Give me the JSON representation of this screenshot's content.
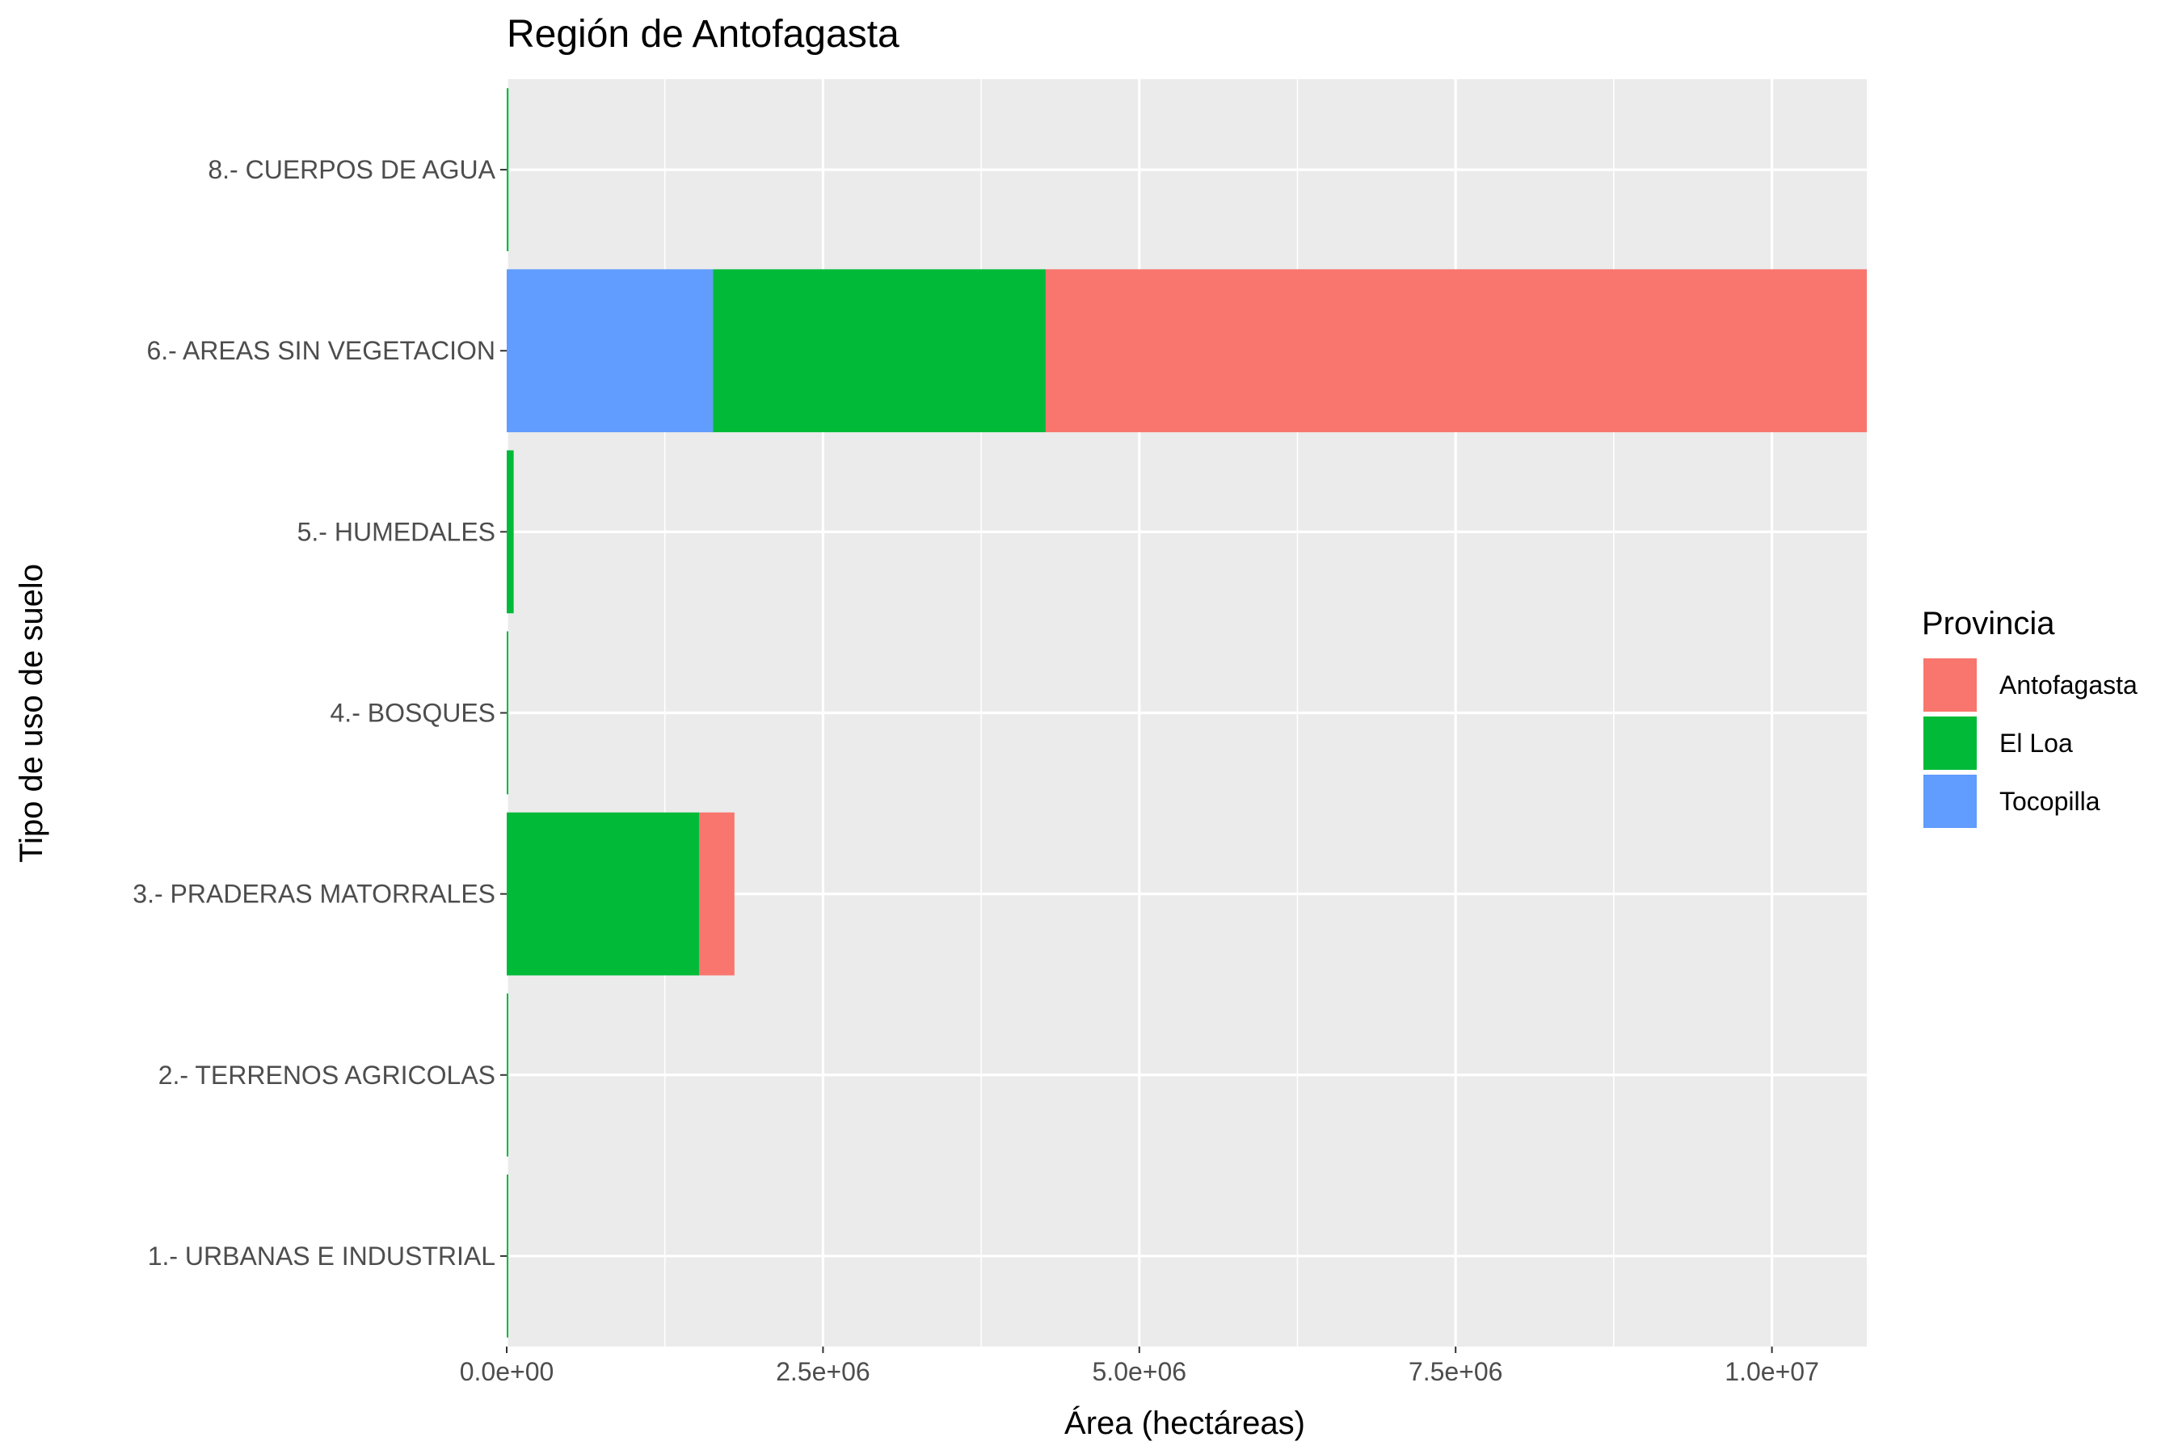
{
  "chart_data": {
    "type": "bar",
    "orientation": "horizontal",
    "stacked": true,
    "title": "Región de Antofagasta",
    "xlabel": "Área (hectáreas)",
    "ylabel": "Tipo de uso de suelo",
    "xlim": [
      0,
      10750000
    ],
    "x_ticks": [
      {
        "value": 0,
        "label": "0.0e+00"
      },
      {
        "value": 2500000,
        "label": "2.5e+06"
      },
      {
        "value": 5000000,
        "label": "5.0e+06"
      },
      {
        "value": 7500000,
        "label": "7.5e+06"
      },
      {
        "value": 10000000,
        "label": "1.0e+07"
      }
    ],
    "categories": [
      "1.- URBANAS E INDUSTRIAL",
      "2.- TERRENOS AGRICOLAS",
      "3.- PRADERAS MATORRALES",
      "4.- BOSQUES",
      "5.- HUMEDALES",
      "6.- AREAS SIN VEGETACION",
      "8.- CUERPOS DE AGUA"
    ],
    "series": [
      {
        "name": "Tocopilla",
        "color": "#619CFF",
        "values": [
          0,
          0,
          0,
          0,
          0,
          1630000,
          0
        ]
      },
      {
        "name": "El Loa",
        "color": "#00BA38",
        "values": [
          10000,
          8000,
          1520000,
          6000,
          55000,
          2630000,
          14000
        ]
      },
      {
        "name": "Antofagasta",
        "color": "#F8766D",
        "values": [
          0,
          0,
          280000,
          0,
          0,
          6490000,
          0
        ]
      }
    ],
    "legend": {
      "title": "Provincia",
      "position": "right",
      "items": [
        {
          "name": "Antofagasta",
          "color": "#F8766D"
        },
        {
          "name": "El Loa",
          "color": "#00BA38"
        },
        {
          "name": "Tocopilla",
          "color": "#619CFF"
        }
      ]
    },
    "grid": true,
    "panel_background": "#EBEBEB",
    "grid_color": "#FFFFFF"
  }
}
